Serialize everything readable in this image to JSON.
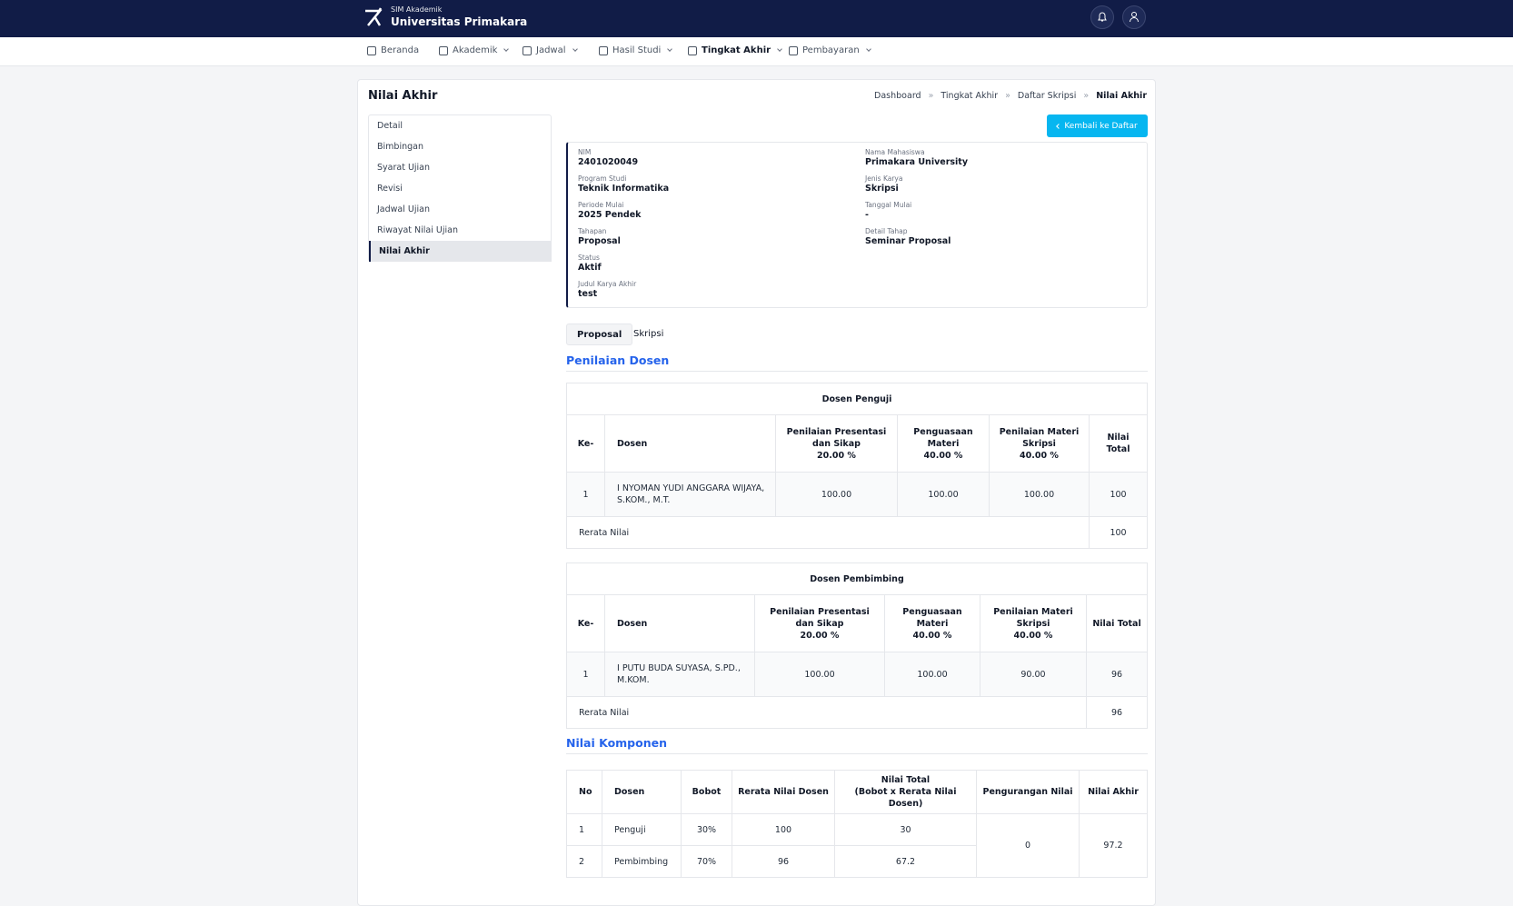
{
  "header": {
    "subtitle": "SIM Akademik",
    "title": "Universitas Primakara"
  },
  "nav": [
    "Beranda",
    "Akademik",
    "Jadwal",
    "Hasil Studi",
    "Tingkat Akhir",
    "Pembayaran"
  ],
  "page": {
    "title": "Nilai Akhir",
    "breadcrumb": [
      "Dashboard",
      "Tingkat Akhir",
      "Daftar Skripsi",
      "Nilai Akhir"
    ],
    "back_button": "Kembali ke Daftar"
  },
  "sidebar": [
    "Detail",
    "Bimbingan",
    "Syarat Ujian",
    "Revisi",
    "Jadwal Ujian",
    "Riwayat Nilai Ujian",
    "Nilai Akhir"
  ],
  "info": {
    "left": [
      {
        "label": "NIM",
        "value": "2401020049"
      },
      {
        "label": "Program Studi",
        "value": "Teknik Informatika"
      },
      {
        "label": "Periode Mulai",
        "value": "2025 Pendek"
      },
      {
        "label": "Tahapan",
        "value": "Proposal"
      },
      {
        "label": "Status",
        "value": "Aktif"
      },
      {
        "label": "Judul Karya Akhir",
        "value": "test"
      }
    ],
    "right": [
      {
        "label": "Nama Mahasiswa",
        "value": "Primakara University"
      },
      {
        "label": "Jenis Karya",
        "value": "Skripsi"
      },
      {
        "label": "Tanggal Mulai",
        "value": "-"
      },
      {
        "label": "Detail Tahap",
        "value": "Seminar Proposal"
      }
    ]
  },
  "tabs": [
    "Proposal",
    "Skripsi"
  ],
  "sections": {
    "penilaian": "Penilaian Dosen",
    "komponen": "Nilai Komponen"
  },
  "penguji": {
    "title": "Dosen Penguji",
    "headers": [
      {
        "name": "Ke-"
      },
      {
        "name": "Dosen"
      },
      {
        "name": "Penilaian Presentasi dan Sikap",
        "weight": "20.00 %"
      },
      {
        "name": "Penguasaan Materi",
        "weight": "40.00 %"
      },
      {
        "name": "Penilaian Materi Skripsi",
        "weight": "40.00 %"
      },
      {
        "name": "Nilai Total"
      }
    ],
    "rows": [
      [
        "1",
        "I NYOMAN YUDI ANGGARA WIJAYA, S.KOM., M.T.",
        "100.00",
        "100.00",
        "100.00",
        "100"
      ]
    ],
    "average_label": "Rerata Nilai",
    "average": "100"
  },
  "pembimbing": {
    "title": "Dosen Pembimbing",
    "headers": [
      {
        "name": "Ke-"
      },
      {
        "name": "Dosen"
      },
      {
        "name": "Penilaian Presentasi dan Sikap",
        "weight": "20.00 %"
      },
      {
        "name": "Penguasaan Materi",
        "weight": "40.00 %"
      },
      {
        "name": "Penilaian Materi Skripsi",
        "weight": "40.00 %"
      },
      {
        "name": "Nilai Total"
      }
    ],
    "rows": [
      [
        "1",
        "I PUTU BUDA SUYASA, S.PD., M.KOM.",
        "100.00",
        "100.00",
        "90.00",
        "96"
      ]
    ],
    "average_label": "Rerata Nilai",
    "average": "96"
  },
  "komponen": {
    "headers": [
      {
        "name": "No"
      },
      {
        "name": "Dosen"
      },
      {
        "name": "Bobot"
      },
      {
        "name": "Rerata Nilai Dosen"
      },
      {
        "name": "Nilai Total",
        "weight": "(Bobot x Rerata Nilai Dosen)"
      },
      {
        "name": "Pengurangan Nilai"
      },
      {
        "name": "Nilai Akhir"
      }
    ],
    "rows": [
      [
        "1",
        "Penguji",
        "30%",
        "100",
        "30"
      ],
      [
        "2",
        "Pembimbing",
        "70%",
        "96",
        "67.2"
      ]
    ],
    "pengurangan": "0",
    "nilai_akhir": "97.2"
  }
}
